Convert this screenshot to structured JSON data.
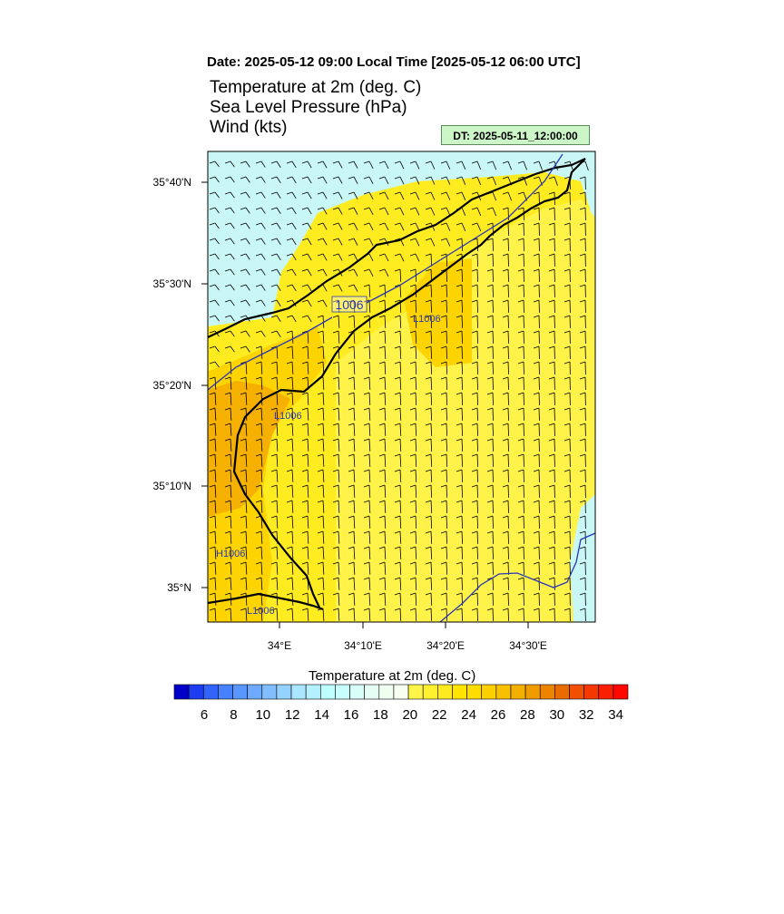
{
  "header": {
    "date_line": "Date: 2025-05-12  09:00 Local Time [2025-05-12  06:00 UTC]",
    "titles": [
      "Temperature at 2m   (deg. C)",
      "Sea Level Pressure   (hPa)",
      "Wind   (kts)"
    ],
    "dt_badge": "DT: 2025-05-11_12:00:00"
  },
  "map": {
    "lat_labels": [
      "35°40'N",
      "35°30'N",
      "35°20'N",
      "35°10'N",
      "35°N"
    ],
    "lon_labels": [
      "34°E",
      "34°10'E",
      "34°20'E",
      "34°30'E"
    ],
    "isobar_label": "1006",
    "low_markers": [
      "L1006",
      "L1006",
      "L1006"
    ],
    "high_marker": "H1006",
    "colors": {
      "sea": "#c9f7f5",
      "land_main": "#ffec20",
      "land_light": "#fff34a",
      "land_warm": "#fdd400",
      "land_hot": "#f5b000",
      "coast": "#000000",
      "isobar": "#2a36b8"
    }
  },
  "colorbar": {
    "title": "Temperature at 2m  (deg. C)",
    "tick_labels": [
      "6",
      "8",
      "10",
      "12",
      "14",
      "16",
      "18",
      "20",
      "22",
      "24",
      "26",
      "28",
      "30",
      "32",
      "34"
    ],
    "colors": [
      "#0000c8",
      "#1e3cf0",
      "#3264fa",
      "#4682ff",
      "#5a96ff",
      "#6eaaff",
      "#82beff",
      "#96d2ff",
      "#aae6ff",
      "#b4f0ff",
      "#beffff",
      "#c8ffff",
      "#d8fff8",
      "#e6fff4",
      "#f0fff0",
      "#f6fff0",
      "#fff44a",
      "#fff030",
      "#ffea20",
      "#ffe400",
      "#fedc00",
      "#fcd000",
      "#f8c000",
      "#f4b000",
      "#f09c00",
      "#ec8400",
      "#e86c00",
      "#f05000",
      "#f43800",
      "#f82000",
      "#fc0800"
    ]
  }
}
